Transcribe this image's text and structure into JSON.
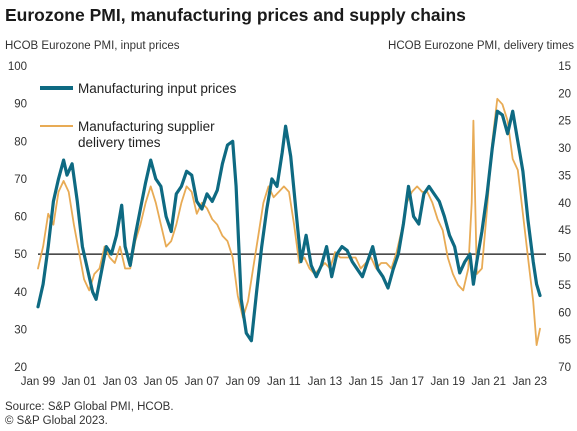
{
  "title": "Eurozone PMI, manufacturing prices and supply chains",
  "left_axis_title": "HCOB Eurozone PMI, input prices",
  "right_axis_title": "HCOB Eurozone PMI, delivery times",
  "source": "Source: S&P Global PMI, HCOB.",
  "copyright": "© S&P Global 2023.",
  "colors": {
    "input_prices": "#0e6a82",
    "delivery_times": "#e8ab55",
    "reference_line": "#111111"
  },
  "chart_data": {
    "type": "line",
    "title": "Eurozone PMI, manufacturing prices and supply chains",
    "x_tick_labels": [
      "Jan 99",
      "Jan 01",
      "Jan 03",
      "Jan 05",
      "Jan 07",
      "Jan 09",
      "Jan 11",
      "Jan 13",
      "Jan 15",
      "Jan 17",
      "Jan 19",
      "Jan 21",
      "Jan 23"
    ],
    "x_range": [
      "1999-01",
      "2023-07"
    ],
    "y_left": {
      "label": "HCOB Eurozone PMI, input prices",
      "range": [
        20,
        100
      ],
      "ticks": [
        20,
        30,
        40,
        50,
        60,
        70,
        80,
        90,
        100
      ]
    },
    "y_right": {
      "label": "HCOB Eurozone PMI, delivery times",
      "range": [
        70,
        15
      ],
      "inverted": true,
      "ticks": [
        15,
        20,
        25,
        30,
        35,
        40,
        45,
        50,
        55,
        60,
        65,
        70
      ]
    },
    "reference_line": {
      "axis": "left",
      "value": 50
    },
    "legend_position": "top-left",
    "grid": false,
    "series": [
      {
        "name": "Manufacturing input prices",
        "axis": "left",
        "points": [
          [
            "1999-01",
            36
          ],
          [
            "1999-04",
            42
          ],
          [
            "1999-07",
            52
          ],
          [
            "1999-10",
            64
          ],
          [
            "2000-01",
            70
          ],
          [
            "2000-04",
            75
          ],
          [
            "2000-06",
            71
          ],
          [
            "2000-09",
            74
          ],
          [
            "2000-12",
            64
          ],
          [
            "2001-03",
            52
          ],
          [
            "2001-06",
            46
          ],
          [
            "2001-09",
            40
          ],
          [
            "2001-11",
            38
          ],
          [
            "2002-02",
            45
          ],
          [
            "2002-05",
            52
          ],
          [
            "2002-08",
            50
          ],
          [
            "2002-11",
            55
          ],
          [
            "2003-02",
            63
          ],
          [
            "2003-04",
            52
          ],
          [
            "2003-07",
            47
          ],
          [
            "2003-10",
            55
          ],
          [
            "2004-01",
            62
          ],
          [
            "2004-04",
            69
          ],
          [
            "2004-07",
            75
          ],
          [
            "2004-10",
            70
          ],
          [
            "2005-01",
            68
          ],
          [
            "2005-04",
            60
          ],
          [
            "2005-07",
            56
          ],
          [
            "2005-10",
            66
          ],
          [
            "2006-01",
            68
          ],
          [
            "2006-04",
            72
          ],
          [
            "2006-07",
            71
          ],
          [
            "2006-10",
            64
          ],
          [
            "2007-01",
            62
          ],
          [
            "2007-04",
            66
          ],
          [
            "2007-07",
            64
          ],
          [
            "2007-10",
            67
          ],
          [
            "2008-01",
            74
          ],
          [
            "2008-04",
            79
          ],
          [
            "2008-07",
            80
          ],
          [
            "2008-09",
            68
          ],
          [
            "2008-12",
            38
          ],
          [
            "2009-03",
            29
          ],
          [
            "2009-06",
            27
          ],
          [
            "2009-09",
            40
          ],
          [
            "2009-12",
            52
          ],
          [
            "2010-03",
            62
          ],
          [
            "2010-06",
            70
          ],
          [
            "2010-09",
            68
          ],
          [
            "2010-12",
            77
          ],
          [
            "2011-02",
            84
          ],
          [
            "2011-05",
            76
          ],
          [
            "2011-08",
            62
          ],
          [
            "2011-11",
            48
          ],
          [
            "2012-02",
            55
          ],
          [
            "2012-05",
            47
          ],
          [
            "2012-08",
            44
          ],
          [
            "2012-11",
            47
          ],
          [
            "2013-02",
            52
          ],
          [
            "2013-05",
            44
          ],
          [
            "2013-08",
            50
          ],
          [
            "2013-11",
            52
          ],
          [
            "2014-02",
            51
          ],
          [
            "2014-05",
            48
          ],
          [
            "2014-08",
            46
          ],
          [
            "2014-11",
            44
          ],
          [
            "2015-02",
            48
          ],
          [
            "2015-05",
            52
          ],
          [
            "2015-08",
            46
          ],
          [
            "2015-11",
            44
          ],
          [
            "2016-02",
            41
          ],
          [
            "2016-05",
            46
          ],
          [
            "2016-08",
            50
          ],
          [
            "2016-11",
            58
          ],
          [
            "2017-02",
            68
          ],
          [
            "2017-05",
            60
          ],
          [
            "2017-08",
            58
          ],
          [
            "2017-11",
            66
          ],
          [
            "2018-02",
            68
          ],
          [
            "2018-05",
            66
          ],
          [
            "2018-08",
            64
          ],
          [
            "2018-11",
            60
          ],
          [
            "2019-02",
            55
          ],
          [
            "2019-05",
            52
          ],
          [
            "2019-08",
            45
          ],
          [
            "2019-11",
            48
          ],
          [
            "2020-02",
            50
          ],
          [
            "2020-04",
            42
          ],
          [
            "2020-06",
            48
          ],
          [
            "2020-09",
            56
          ],
          [
            "2020-12",
            66
          ],
          [
            "2021-03",
            78
          ],
          [
            "2021-06",
            88
          ],
          [
            "2021-09",
            87
          ],
          [
            "2021-12",
            82
          ],
          [
            "2022-03",
            88
          ],
          [
            "2022-06",
            80
          ],
          [
            "2022-09",
            72
          ],
          [
            "2022-12",
            59
          ],
          [
            "2023-03",
            48
          ],
          [
            "2023-05",
            42
          ],
          [
            "2023-07",
            39
          ]
        ]
      },
      {
        "name": "Manufacturing supplier delivery times",
        "axis": "right",
        "points": [
          [
            "1999-01",
            52
          ],
          [
            "1999-04",
            48
          ],
          [
            "1999-07",
            42
          ],
          [
            "1999-10",
            44
          ],
          [
            "2000-01",
            38
          ],
          [
            "2000-04",
            36
          ],
          [
            "2000-07",
            38
          ],
          [
            "2000-10",
            44
          ],
          [
            "2001-01",
            49
          ],
          [
            "2001-04",
            54
          ],
          [
            "2001-07",
            56
          ],
          [
            "2001-10",
            53
          ],
          [
            "2002-01",
            52
          ],
          [
            "2002-04",
            48
          ],
          [
            "2002-07",
            50
          ],
          [
            "2002-10",
            51
          ],
          [
            "2003-01",
            48
          ],
          [
            "2003-04",
            52
          ],
          [
            "2003-07",
            52
          ],
          [
            "2003-10",
            47
          ],
          [
            "2004-01",
            44
          ],
          [
            "2004-04",
            40
          ],
          [
            "2004-07",
            37
          ],
          [
            "2004-10",
            40
          ],
          [
            "2005-01",
            44
          ],
          [
            "2005-04",
            48
          ],
          [
            "2005-07",
            47
          ],
          [
            "2005-10",
            44
          ],
          [
            "2006-01",
            40
          ],
          [
            "2006-04",
            37
          ],
          [
            "2006-07",
            38
          ],
          [
            "2006-10",
            42
          ],
          [
            "2007-01",
            40
          ],
          [
            "2007-04",
            41
          ],
          [
            "2007-07",
            43
          ],
          [
            "2007-10",
            44
          ],
          [
            "2008-01",
            46
          ],
          [
            "2008-04",
            47
          ],
          [
            "2008-07",
            50
          ],
          [
            "2008-10",
            57
          ],
          [
            "2009-01",
            61
          ],
          [
            "2009-04",
            58
          ],
          [
            "2009-07",
            52
          ],
          [
            "2009-10",
            46
          ],
          [
            "2010-01",
            40
          ],
          [
            "2010-04",
            37
          ],
          [
            "2010-07",
            39
          ],
          [
            "2010-10",
            38
          ],
          [
            "2011-01",
            37
          ],
          [
            "2011-04",
            38
          ],
          [
            "2011-07",
            44
          ],
          [
            "2011-10",
            51
          ],
          [
            "2012-01",
            50
          ],
          [
            "2012-04",
            52
          ],
          [
            "2012-07",
            53
          ],
          [
            "2012-10",
            52
          ],
          [
            "2013-01",
            51
          ],
          [
            "2013-04",
            52
          ],
          [
            "2013-07",
            49
          ],
          [
            "2013-10",
            50
          ],
          [
            "2014-01",
            50
          ],
          [
            "2014-04",
            50
          ],
          [
            "2014-07",
            50
          ],
          [
            "2014-10",
            52
          ],
          [
            "2015-01",
            51
          ],
          [
            "2015-04",
            50
          ],
          [
            "2015-07",
            52
          ],
          [
            "2015-10",
            51
          ],
          [
            "2016-01",
            51
          ],
          [
            "2016-04",
            52
          ],
          [
            "2016-07",
            49
          ],
          [
            "2016-10",
            45
          ],
          [
            "2017-01",
            40
          ],
          [
            "2017-04",
            38
          ],
          [
            "2017-07",
            37
          ],
          [
            "2017-10",
            38
          ],
          [
            "2018-01",
            38
          ],
          [
            "2018-04",
            40
          ],
          [
            "2018-07",
            43
          ],
          [
            "2018-10",
            45
          ],
          [
            "2019-01",
            50
          ],
          [
            "2019-04",
            53
          ],
          [
            "2019-07",
            55
          ],
          [
            "2019-10",
            56
          ],
          [
            "2020-01",
            52
          ],
          [
            "2020-03",
            40
          ],
          [
            "2020-04",
            25
          ],
          [
            "2020-06",
            53
          ],
          [
            "2020-09",
            52
          ],
          [
            "2020-12",
            41
          ],
          [
            "2021-03",
            29
          ],
          [
            "2021-06",
            21
          ],
          [
            "2021-09",
            22
          ],
          [
            "2021-12",
            25
          ],
          [
            "2022-03",
            32
          ],
          [
            "2022-06",
            34
          ],
          [
            "2022-09",
            42
          ],
          [
            "2022-12",
            50
          ],
          [
            "2023-03",
            58
          ],
          [
            "2023-05",
            66
          ],
          [
            "2023-07",
            63
          ]
        ]
      }
    ]
  }
}
